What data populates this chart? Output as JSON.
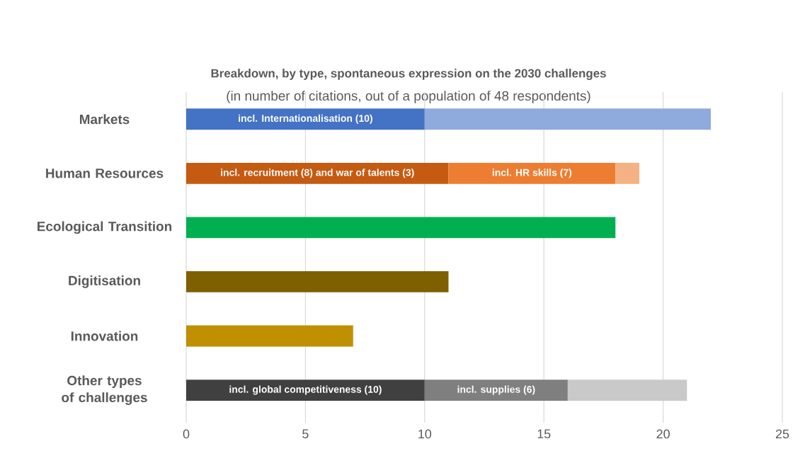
{
  "chart_data": {
    "type": "bar",
    "orientation": "horizontal",
    "stacked": true,
    "title": "Breakdown, by type, spontaneous expression on the 2030 challenges",
    "subtitle": "(in number of citations, out of a population of 48 respondents)",
    "categories": [
      "Markets",
      "Human Resources",
      "Ecological Transition",
      "Digitisation",
      "Innovation",
      "Other types of challenges"
    ],
    "series": [
      {
        "values": [
          10,
          11,
          18,
          11,
          7,
          10
        ],
        "colors": [
          "#4472c4",
          "#c55a11",
          "#00b050",
          "#7f6000",
          "#bf9000",
          "#404040"
        ],
        "value_labels": [
          "incl. Internationalisation (10)",
          "incl. recruitment (8) and war of talents (3)",
          null,
          null,
          null,
          "incl. global competitiveness (10)"
        ]
      },
      {
        "values": [
          12,
          7,
          null,
          null,
          null,
          6
        ],
        "colors": [
          "#8faadc",
          "#ed7d31",
          null,
          null,
          null,
          "#7f7f7f"
        ],
        "value_labels": [
          null,
          "incl. HR skills (7)",
          null,
          null,
          null,
          "incl. supplies (6)"
        ]
      },
      {
        "values": [
          null,
          1,
          null,
          null,
          null,
          5
        ],
        "colors": [
          null,
          "#f4b183",
          null,
          null,
          null,
          "#c9c9c9"
        ]
      }
    ],
    "xlim": [
      0,
      25
    ],
    "xticks": [
      0,
      5,
      10,
      15,
      20,
      25
    ],
    "grid": "x"
  }
}
